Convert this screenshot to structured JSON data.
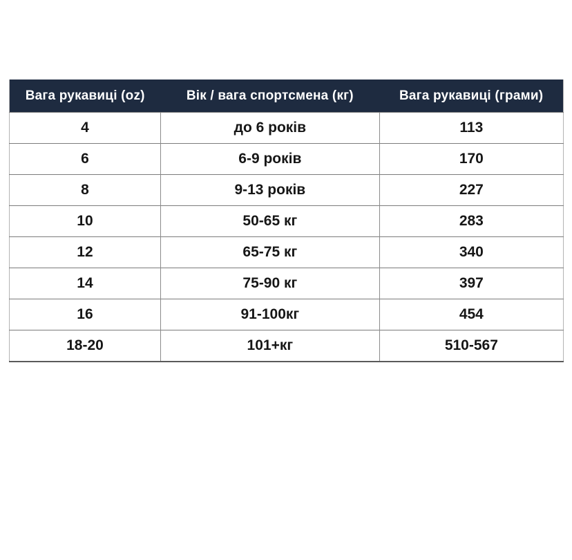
{
  "chart_data": {
    "type": "table",
    "columns": [
      "Вага рукавиці (oz)",
      "Вік / вага спортсмена (кг)",
      "Вага рукавиці (грами)"
    ],
    "rows": [
      [
        "4",
        "до 6 років",
        "113"
      ],
      [
        "6",
        "6-9 років",
        "170"
      ],
      [
        "8",
        "9-13 років",
        "227"
      ],
      [
        "10",
        "50-65 кг",
        "283"
      ],
      [
        "12",
        "65-75 кг",
        "340"
      ],
      [
        "14",
        "75-90 кг",
        "397"
      ],
      [
        "16",
        "91-100кг",
        "454"
      ],
      [
        "18-20",
        "101+кг",
        "510-567"
      ]
    ],
    "layout": {
      "header_position": "top",
      "grid": true
    }
  },
  "colors": {
    "header_bg": "#1e2b40",
    "header_text": "#ffffff",
    "body_text": "#161616",
    "border": "#7b7b7b",
    "page_bg": "#ffffff"
  }
}
